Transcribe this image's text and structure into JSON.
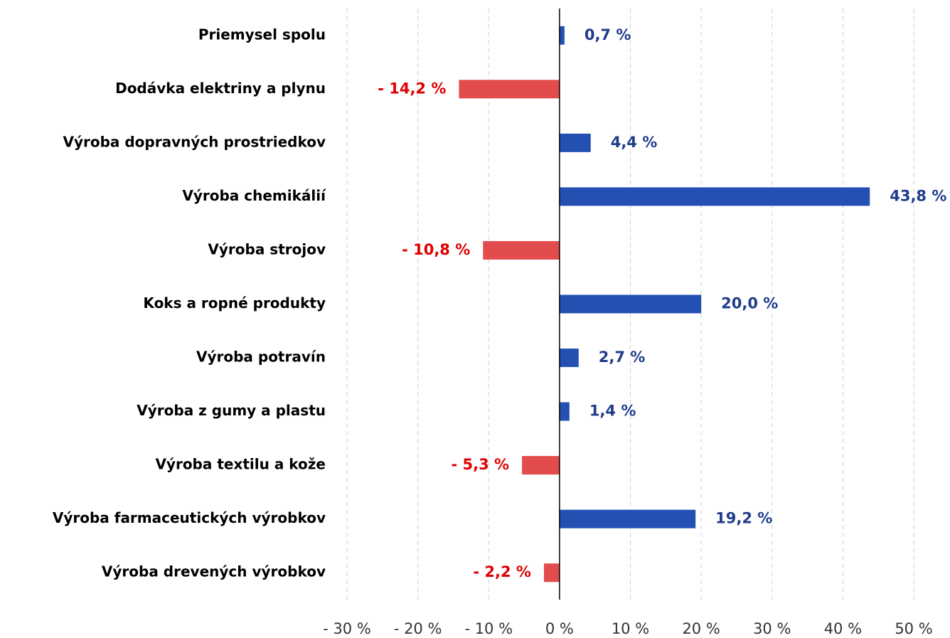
{
  "chart_data": {
    "type": "bar",
    "orientation": "horizontal",
    "categories": [
      "Priemysel spolu",
      "Dodávka elektriny a plynu",
      "Výroba dopravných prostriedkov",
      "Výroba chemikálií",
      "Výroba strojov",
      "Koks a ropné produkty",
      "Výroba potravín",
      "Výroba z gumy a plastu",
      "Výroba textilu a kože",
      "Výroba farmaceutických výrobkov",
      "Výroba drevených výrobkov"
    ],
    "values": [
      0.7,
      -14.2,
      4.4,
      43.8,
      -10.8,
      20.0,
      2.7,
      1.4,
      -5.3,
      19.2,
      -2.2
    ],
    "value_labels": [
      "0,7 %",
      "- 14,2 %",
      "4,4 %",
      "43,8 %",
      "- 10,8 %",
      "20,0 %",
      "2,7 %",
      "1,4 %",
      "- 5,3 %",
      "19,2 %",
      "- 2,2 %"
    ],
    "positive_color": "#2450b4",
    "negative_color": "#e24c4c",
    "positive_label_color": "#1f3c8c",
    "negative_label_color": "#e00000",
    "xlim": [
      -30,
      50
    ],
    "xticks": [
      {
        "value": -30,
        "label": "- 30 %"
      },
      {
        "value": -20,
        "label": "- 20 %"
      },
      {
        "value": -10,
        "label": "- 10 %"
      },
      {
        "value": 0,
        "label": "0 %"
      },
      {
        "value": 10,
        "label": "10 %"
      },
      {
        "value": 20,
        "label": "20 %"
      },
      {
        "value": 30,
        "label": "30 %"
      },
      {
        "value": 40,
        "label": "40 %"
      },
      {
        "value": 50,
        "label": "50 %"
      }
    ],
    "grid": true
  }
}
